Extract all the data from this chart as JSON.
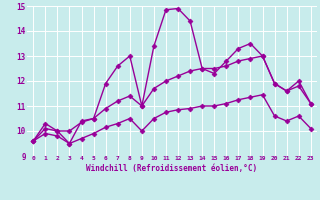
{
  "xlabel": "Windchill (Refroidissement éolien,°C)",
  "ylabel": "",
  "bg_color": "#c8ecec",
  "grid_color": "#ffffff",
  "line_color": "#990099",
  "xlim": [
    -0.5,
    23.5
  ],
  "ylim": [
    9,
    15
  ],
  "xticks": [
    0,
    1,
    2,
    3,
    4,
    5,
    6,
    7,
    8,
    9,
    10,
    11,
    12,
    13,
    14,
    15,
    16,
    17,
    18,
    19,
    20,
    21,
    22,
    23
  ],
  "yticks": [
    9,
    10,
    11,
    12,
    13,
    14,
    15
  ],
  "line1_x": [
    0,
    1,
    2,
    3,
    4,
    5,
    6,
    7,
    8,
    9,
    10,
    11,
    12,
    13,
    14,
    15,
    16,
    17,
    18,
    19,
    20,
    21,
    22,
    23
  ],
  "line1_y": [
    9.6,
    10.3,
    10.0,
    9.5,
    10.4,
    10.5,
    11.9,
    12.6,
    13.0,
    11.0,
    13.4,
    14.85,
    14.9,
    14.4,
    12.5,
    12.3,
    12.8,
    13.3,
    13.5,
    13.0,
    11.9,
    11.6,
    12.0,
    11.1
  ],
  "line2_x": [
    0,
    1,
    2,
    3,
    4,
    5,
    6,
    7,
    8,
    9,
    10,
    11,
    12,
    13,
    14,
    15,
    16,
    17,
    18,
    19,
    20,
    21,
    22,
    23
  ],
  "line2_y": [
    9.6,
    10.1,
    10.0,
    10.0,
    10.35,
    10.5,
    10.9,
    11.2,
    11.4,
    11.0,
    11.7,
    12.0,
    12.2,
    12.4,
    12.5,
    12.5,
    12.6,
    12.8,
    12.9,
    13.0,
    11.9,
    11.6,
    11.8,
    11.1
  ],
  "line3_x": [
    0,
    1,
    2,
    3,
    4,
    5,
    6,
    7,
    8,
    9,
    10,
    11,
    12,
    13,
    14,
    15,
    16,
    17,
    18,
    19,
    20,
    21,
    22,
    23
  ],
  "line3_y": [
    9.6,
    9.9,
    9.8,
    9.5,
    9.7,
    9.9,
    10.15,
    10.3,
    10.5,
    10.0,
    10.5,
    10.75,
    10.85,
    10.9,
    11.0,
    11.0,
    11.1,
    11.25,
    11.35,
    11.45,
    10.6,
    10.4,
    10.6,
    10.1
  ],
  "marker": "D",
  "marker_size": 2.5,
  "line_width": 1.0
}
